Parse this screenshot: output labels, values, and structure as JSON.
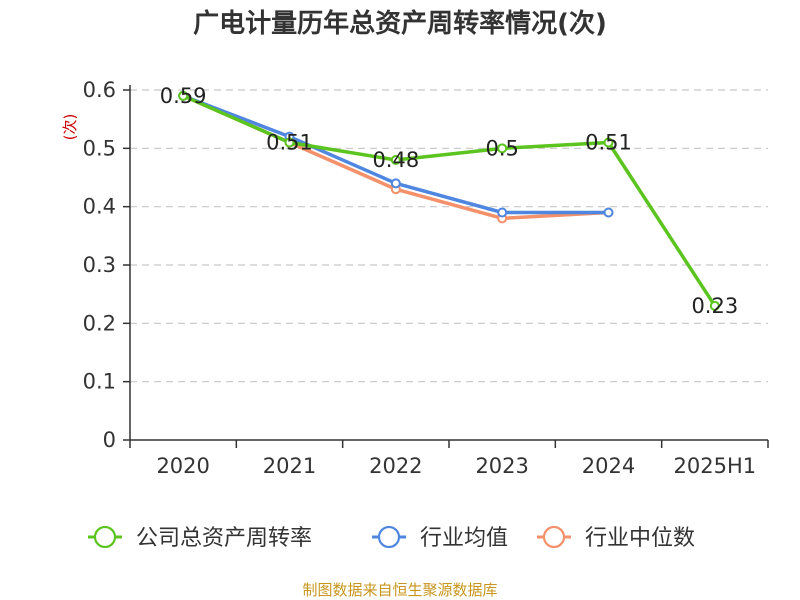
{
  "chart_data": {
    "type": "line",
    "title": "广电计量历年总资产周转率情况(次)",
    "ylabel": "(次)",
    "xlabel": "",
    "categories": [
      "2020",
      "2021",
      "2022",
      "2023",
      "2024",
      "2025H1"
    ],
    "ylim": [
      0,
      0.6
    ],
    "yticks": [
      "0",
      "0.1",
      "0.2",
      "0.3",
      "0.4",
      "0.5",
      "0.6"
    ],
    "grid": true,
    "legend_position": "bottom",
    "series": [
      {
        "name": "公司总资产周转率",
        "color": "#5bc41f",
        "values": [
          0.59,
          0.51,
          0.48,
          0.5,
          0.51,
          0.23
        ],
        "labels": true
      },
      {
        "name": "行业均值",
        "color": "#4f86e0",
        "values": [
          0.59,
          0.52,
          0.44,
          0.39,
          0.39,
          null
        ],
        "labels": false
      },
      {
        "name": "行业中位数",
        "color": "#f4906a",
        "values": [
          0.59,
          0.51,
          0.43,
          0.38,
          0.39,
          null
        ],
        "labels": false
      }
    ]
  },
  "source": "制图数据来自恒生聚源数据库"
}
